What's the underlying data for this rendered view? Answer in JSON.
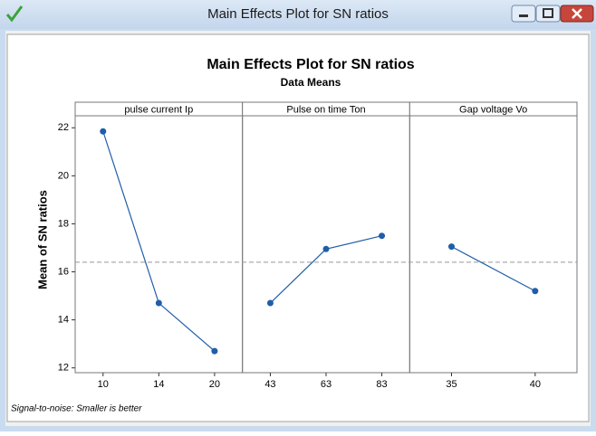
{
  "window": {
    "title": "Main Effects Plot for SN ratios"
  },
  "chart_data": {
    "type": "line",
    "title": "Main Effects Plot for SN ratios",
    "subtitle": "Data Means",
    "ylabel": "Mean of SN ratios",
    "footnote": "Signal-to-noise: Smaller is better",
    "ylim": [
      11.8,
      22.5
    ],
    "yticks": [
      12,
      14,
      16,
      18,
      20,
      22
    ],
    "reference_line": 16.4,
    "color": "#1f5ea8",
    "panels": [
      {
        "title": "pulse current Ip",
        "categories": [
          "10",
          "14",
          "20"
        ],
        "values": [
          21.85,
          14.7,
          12.7
        ]
      },
      {
        "title": "Pulse on time Ton",
        "categories": [
          "43",
          "63",
          "83"
        ],
        "values": [
          14.7,
          16.95,
          17.5
        ]
      },
      {
        "title": "Gap voltage Vo",
        "categories": [
          "35",
          "40"
        ],
        "values": [
          17.05,
          15.2
        ]
      }
    ]
  }
}
